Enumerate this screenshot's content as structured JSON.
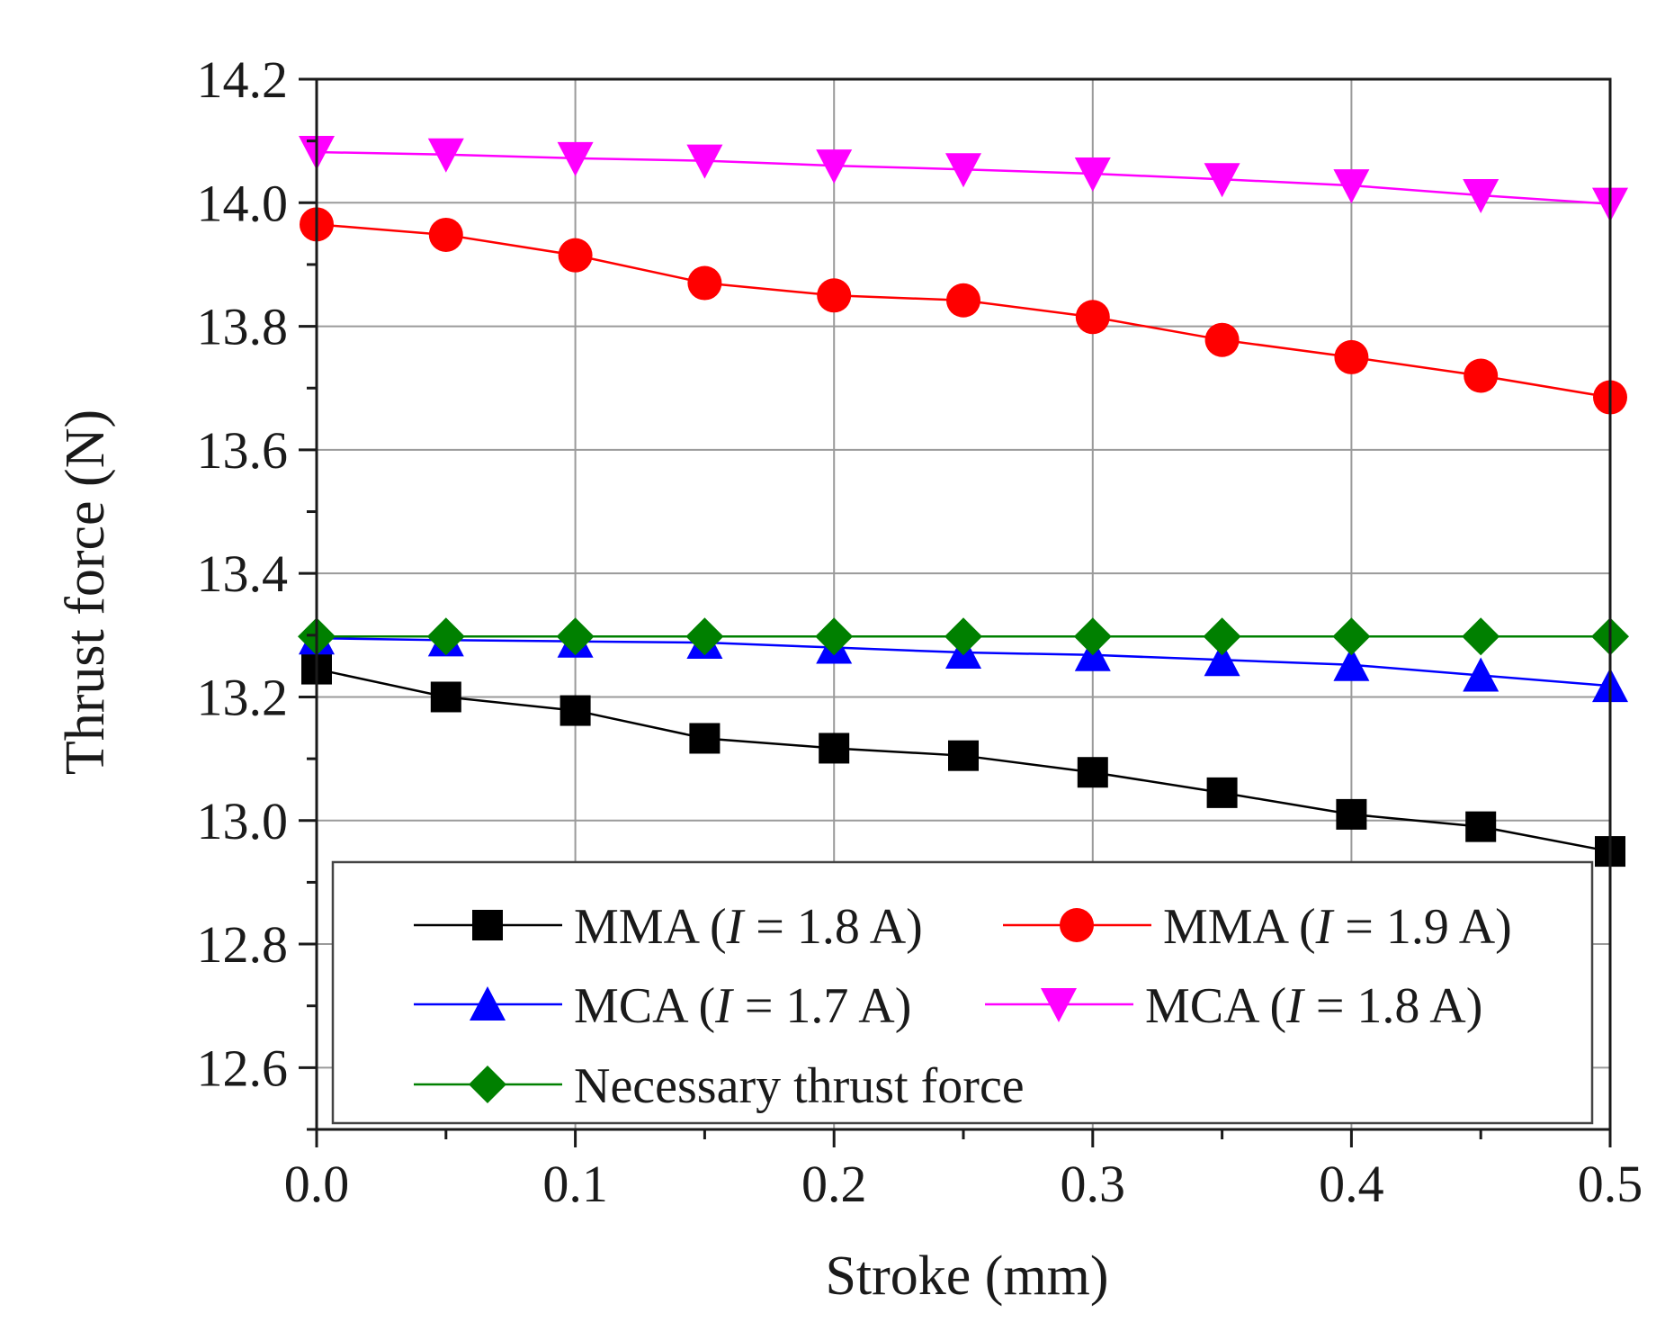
{
  "chart_data": {
    "type": "line",
    "title": "",
    "xlabel": "Stroke (mm)",
    "ylabel": "Thrust force (N)",
    "xlim": [
      0.0,
      0.5
    ],
    "ylim": [
      12.5,
      14.2
    ],
    "xticks": [
      0.0,
      0.1,
      0.2,
      0.3,
      0.4,
      0.5
    ],
    "xtick_labels": [
      "0.0",
      "0.1",
      "0.2",
      "0.3",
      "0.4",
      "0.5"
    ],
    "yticks": [
      12.6,
      12.8,
      13.0,
      13.2,
      13.4,
      13.6,
      13.8,
      14.0,
      14.2
    ],
    "ytick_labels": [
      "12.6",
      "12.8",
      "13.0",
      "13.2",
      "13.4",
      "13.6",
      "13.8",
      "14.0",
      "14.2"
    ],
    "grid": true,
    "legend_position": "bottom-inside",
    "x": [
      0.0,
      0.05,
      0.1,
      0.15,
      0.2,
      0.25,
      0.3,
      0.35,
      0.4,
      0.45,
      0.5
    ],
    "series": [
      {
        "name": "MMA (I = 1.8 A)",
        "label_prefix": "MMA (",
        "label_var": "I",
        "label_suffix": " = 1.8 A)",
        "color": "#000000",
        "marker": "square",
        "values": [
          13.245,
          13.2,
          13.178,
          13.133,
          13.117,
          13.105,
          13.078,
          13.045,
          13.01,
          12.99,
          12.95
        ]
      },
      {
        "name": "MMA (I = 1.9 A)",
        "label_prefix": "MMA (",
        "label_var": "I",
        "label_suffix": " = 1.9 A)",
        "color": "#ff0000",
        "marker": "circle",
        "values": [
          13.965,
          13.948,
          13.915,
          13.87,
          13.85,
          13.842,
          13.815,
          13.778,
          13.75,
          13.72,
          13.685
        ]
      },
      {
        "name": "MCA (I = 1.7 A)",
        "label_prefix": "MCA (",
        "label_var": "I",
        "label_suffix": " = 1.7 A)",
        "color": "#0000ff",
        "marker": "triangle-up",
        "values": [
          13.295,
          13.292,
          13.29,
          13.288,
          13.28,
          13.272,
          13.268,
          13.26,
          13.252,
          13.235,
          13.218
        ]
      },
      {
        "name": "MCA (I = 1.8 A)",
        "label_prefix": "MCA (",
        "label_var": "I",
        "label_suffix": " = 1.8 A)",
        "color": "#ff00ff",
        "marker": "triangle-down",
        "values": [
          14.082,
          14.078,
          14.072,
          14.068,
          14.06,
          14.054,
          14.047,
          14.038,
          14.028,
          14.012,
          13.998
        ]
      },
      {
        "name": "Necessary thrust force",
        "label_prefix": "Necessary thrust force",
        "label_var": "",
        "label_suffix": "",
        "color": "#008000",
        "marker": "diamond",
        "values": [
          13.298,
          13.298,
          13.298,
          13.298,
          13.298,
          13.298,
          13.298,
          13.298,
          13.298,
          13.298,
          13.298
        ]
      }
    ]
  }
}
